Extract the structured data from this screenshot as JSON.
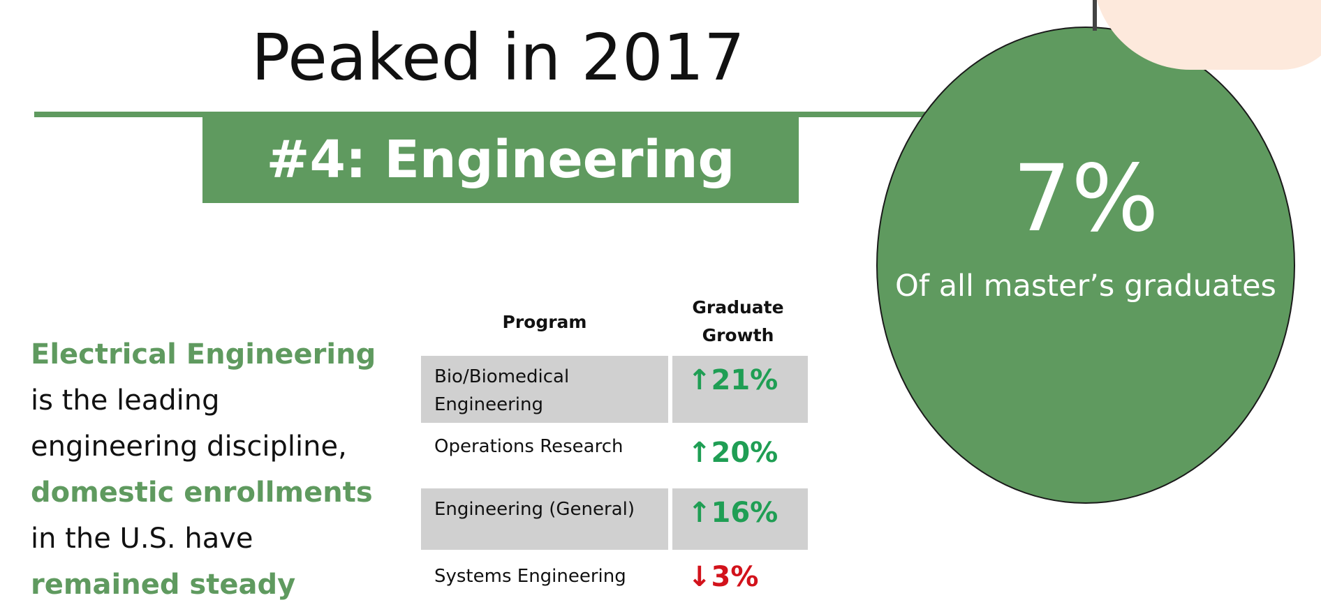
{
  "slide": {
    "title": "Peaked in 2017",
    "banner": "#4: Engineering",
    "accent_color": "#5f9a5f"
  },
  "stat": {
    "value": "7%",
    "caption": "Of all master’s graduates"
  },
  "summary": {
    "line1_highlight": "Electrical Engineering",
    "line2": "is the leading",
    "line3": "engineering discipline,",
    "line4_highlight": "domestic enrollments",
    "line5": "in the U.S. have",
    "line6_highlight": "remained steady"
  },
  "table": {
    "headers": {
      "program": "Program",
      "growth_line1": "Graduate",
      "growth_line2": "Growth"
    },
    "rows": [
      {
        "program_line1": "Bio/Biomedical",
        "program_line2": "Engineering",
        "arrow": "↑",
        "growth": "21%",
        "direction": "up",
        "shaded": true
      },
      {
        "program_line1": "Operations Research",
        "program_line2": "",
        "arrow": "↑",
        "growth": "20%",
        "direction": "up",
        "shaded": false
      },
      {
        "program_line1": "Engineering (General)",
        "program_line2": "",
        "arrow": "↑",
        "growth": "16%",
        "direction": "up",
        "shaded": true
      },
      {
        "program_line1": "Systems Engineering",
        "program_line2": "",
        "arrow": "↓",
        "growth": "3%",
        "direction": "down",
        "shaded": false
      }
    ],
    "up_color": "#1f9e54",
    "down_color": "#d2121b"
  }
}
